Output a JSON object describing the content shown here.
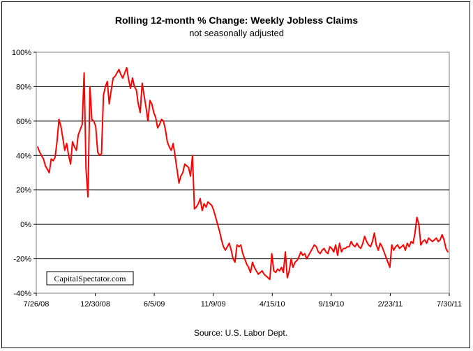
{
  "chart_data": {
    "type": "line",
    "title": "Rolling 12-month %  Change: Weekly Jobless Claims",
    "subtitle": "not seasonally adjusted",
    "xlabel": "",
    "ylabel": "",
    "source": "Source: U.S. Labor Dept.",
    "watermark": "CapitalSpectator.com",
    "ylim": [
      -40,
      100
    ],
    "yticks": [
      100,
      80,
      60,
      40,
      20,
      0,
      -20,
      -40
    ],
    "ytick_labels": [
      "100%",
      "80%",
      "60%",
      "40%",
      "20%",
      "0%",
      "-20%",
      "-40%"
    ],
    "xticks": [
      "7/26/08",
      "12/30/08",
      "6/5/09",
      "11/9/09",
      "4/15/10",
      "9/19/10",
      "2/23/11",
      "7/30/11"
    ],
    "grid": "horizontal",
    "line_color": "#ff0000",
    "series": [
      {
        "values": [
          45,
          42,
          40,
          38,
          34,
          32,
          30,
          38,
          37,
          39,
          48,
          61,
          57,
          50,
          43,
          47,
          40,
          35,
          48,
          45,
          43,
          52,
          55,
          58,
          88,
          32,
          16,
          80,
          61,
          60,
          57,
          42,
          40,
          41,
          75,
          80,
          83,
          70,
          78,
          85,
          86,
          88,
          90,
          87,
          85,
          88,
          91,
          84,
          79,
          85,
          80,
          78,
          70,
          65,
          82,
          75,
          68,
          60,
          72,
          70,
          65,
          62,
          56,
          58,
          61,
          60,
          55,
          48,
          45,
          43,
          47,
          40,
          32,
          24,
          28,
          30,
          35,
          34,
          33,
          28,
          40,
          9,
          10,
          12,
          15,
          8,
          12,
          10,
          13,
          12,
          11,
          8,
          4,
          0,
          -4,
          -9,
          -13,
          -15,
          -13,
          -11,
          -15,
          -20,
          -22,
          -12,
          -13,
          -12,
          -17,
          -20,
          -23,
          -25,
          -28,
          -22,
          -25,
          -27,
          -29,
          -28,
          -27,
          -29,
          -30,
          -31,
          -32,
          -17,
          -27,
          -28,
          -26,
          -27,
          -25,
          -28,
          -16,
          -31,
          -27,
          -20,
          -25,
          -22,
          -21,
          -19,
          -16,
          -18,
          -17,
          -20,
          -18,
          -16,
          -14,
          -12,
          -13,
          -16,
          -17,
          -15,
          -14,
          -16,
          -17,
          -13,
          -14,
          -16,
          -12,
          -18,
          -11,
          -16,
          -14,
          -14,
          -13,
          -13,
          -10,
          -12,
          -13,
          -11,
          -13,
          -14,
          -11,
          -7,
          -10,
          -12,
          -13,
          -10,
          -5,
          -12,
          -15,
          -11,
          -13,
          -16,
          -19,
          -22,
          -25,
          -12,
          -15,
          -13,
          -12,
          -14,
          -13,
          -12,
          -15,
          -11,
          -13,
          -10,
          -11,
          -5,
          4,
          0,
          -12,
          -10,
          -9,
          -11,
          -8,
          -9,
          -10,
          -9,
          -8,
          -10,
          -9,
          -6,
          -9,
          -14,
          -16
        ]
      }
    ]
  }
}
